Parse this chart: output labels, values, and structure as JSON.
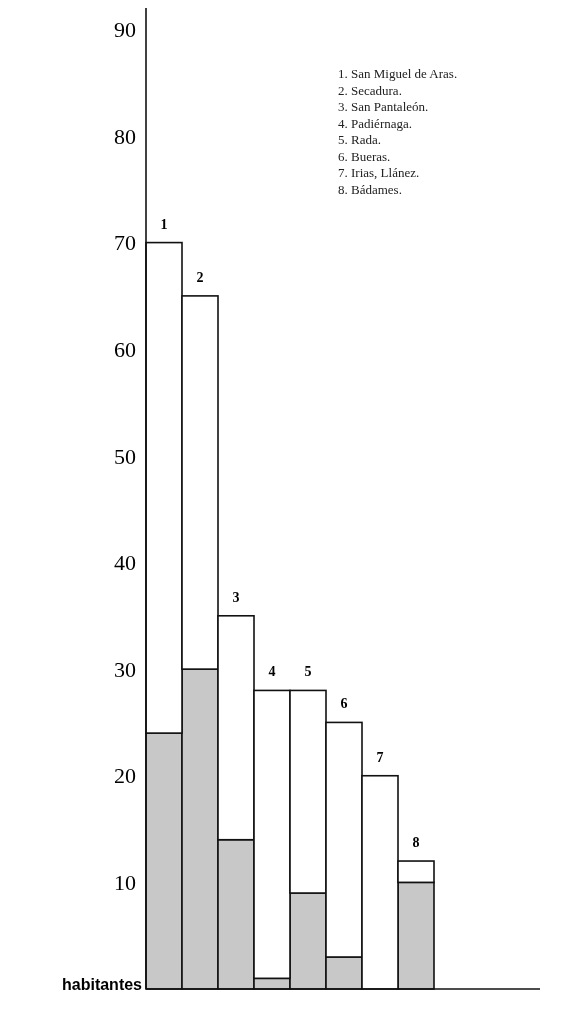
{
  "chart_data": {
    "type": "bar",
    "stacked": true,
    "ylabel": "habitantes",
    "categories": [
      "1",
      "2",
      "3",
      "4",
      "5",
      "6",
      "7",
      "8"
    ],
    "series": [
      {
        "color": "#c8c8c8",
        "values": [
          24,
          30,
          14,
          1,
          9,
          3,
          0,
          10
        ]
      },
      {
        "color": "#ffffff",
        "values": [
          46,
          35,
          21,
          27,
          19,
          22,
          20,
          2
        ]
      }
    ],
    "ylim": [
      0,
      92
    ],
    "yticks": [
      10,
      20,
      30,
      40,
      50,
      60,
      70,
      80,
      90
    ],
    "grid": false,
    "annotations": [
      "1. San Miguel de Aras.",
      "2. Secadura.",
      "3. San Pantaleón.",
      "4. Padiérnaga.",
      "5. Rada.",
      "6. Bueras.",
      "7. Irias, Llánez.",
      "8. Bádames."
    ]
  }
}
